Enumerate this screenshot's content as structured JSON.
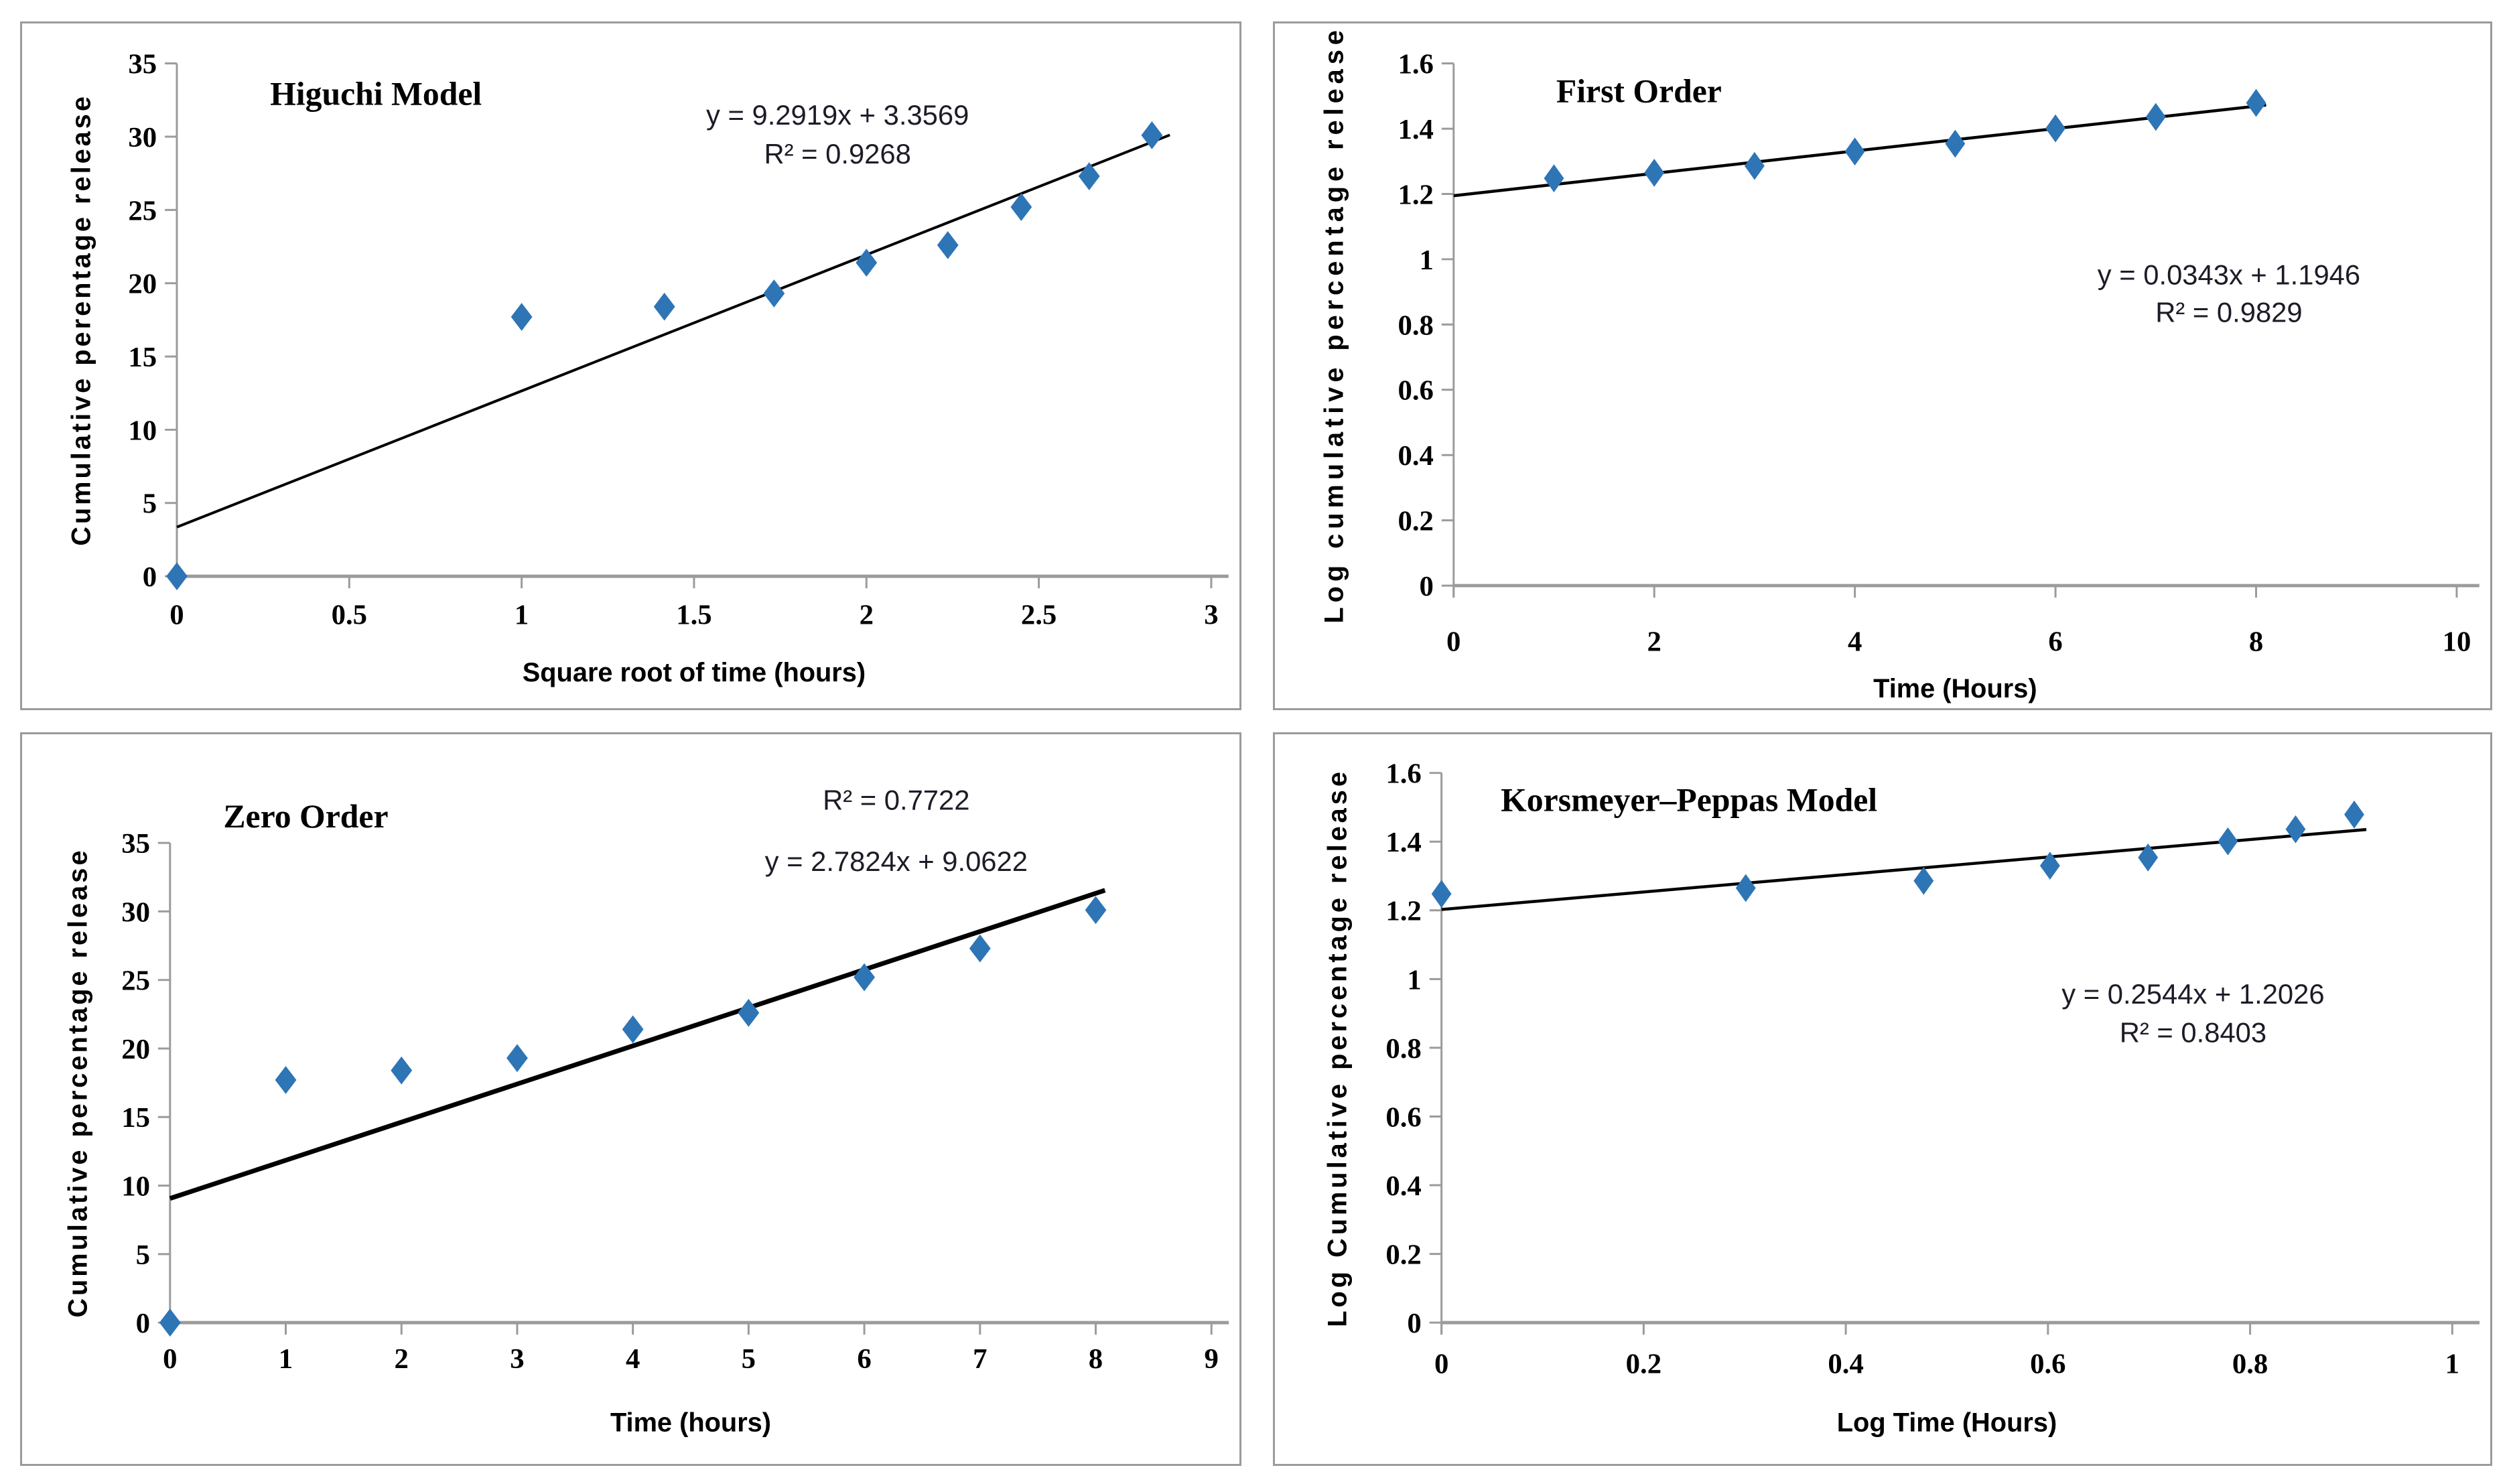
{
  "colors": {
    "marker": "#2E75B6",
    "trendline": "#000000",
    "axis": "#9B9B9B",
    "panel_border": "#9B9B9B",
    "text": "#000000",
    "equation_text": "#1c1c28",
    "background": "#ffffff"
  },
  "chart_data": [
    {
      "type": "scatter",
      "title": "Higuchi Model",
      "xlabel": "Square root of time (hours)",
      "ylabel": "Cumulative perentage release",
      "xlim": [
        0,
        3
      ],
      "ylim": [
        0,
        35
      ],
      "x_tick_values": [
        0,
        0.5,
        1,
        1.5,
        2,
        2.5,
        3
      ],
      "x_ticks": [
        "0",
        "0.5",
        "1",
        "1.5",
        "2",
        "2.5",
        "3"
      ],
      "y_tick_values": [
        0,
        5,
        10,
        15,
        20,
        25,
        30,
        35
      ],
      "y_ticks": [
        "0",
        "5",
        "10",
        "15",
        "20",
        "25",
        "30",
        "35"
      ],
      "points": [
        [
          0,
          0
        ],
        [
          1,
          17.7
        ],
        [
          1.414,
          18.4
        ],
        [
          1.732,
          19.3
        ],
        [
          2,
          21.4
        ],
        [
          2.236,
          22.6
        ],
        [
          2.449,
          25.2
        ],
        [
          2.646,
          27.3
        ],
        [
          2.828,
          30.1
        ]
      ],
      "trendline": {
        "label": "y = 9.2919x + 3.3569",
        "r2_label": "R² = 0.9268",
        "slope": 9.2919,
        "intercept": 3.3569,
        "x_start": 0,
        "x_end": 2.88,
        "annotation_order": [
          "eq",
          "r2"
        ]
      },
      "legend": "none",
      "grid": "off"
    },
    {
      "type": "scatter",
      "title": "First Order",
      "xlabel": "Time (Hours)",
      "ylabel": "Log cumulative percentage release",
      "xlim": [
        0,
        10
      ],
      "ylim": [
        0,
        1.6
      ],
      "x_tick_values": [
        0,
        2,
        4,
        6,
        8,
        10
      ],
      "x_ticks": [
        "0",
        "2",
        "4",
        "6",
        "8",
        "10"
      ],
      "y_tick_values": [
        0,
        0.2,
        0.4,
        0.6,
        0.8,
        1,
        1.2,
        1.4,
        1.6
      ],
      "y_ticks": [
        "0",
        "0.2",
        "0.4",
        "0.6",
        "0.8",
        "1",
        "1.2",
        "1.4",
        "1.6"
      ],
      "points": [
        [
          1,
          1.248
        ],
        [
          2,
          1.265
        ],
        [
          3,
          1.286
        ],
        [
          4,
          1.33
        ],
        [
          5,
          1.354
        ],
        [
          6,
          1.401
        ],
        [
          7,
          1.436
        ],
        [
          8,
          1.479
        ]
      ],
      "trendline": {
        "label": "y = 0.0343x + 1.1946",
        "r2_label": "R² = 0.9829",
        "slope": 0.0343,
        "intercept": 1.1946,
        "x_start": 0,
        "x_end": 8.1,
        "annotation_order": [
          "eq",
          "r2"
        ]
      },
      "legend": "none",
      "grid": "off"
    },
    {
      "type": "scatter",
      "title": "Zero Order",
      "xlabel": "Time (hours)",
      "ylabel": "Cumulative percentage release",
      "xlim": [
        0,
        9
      ],
      "ylim": [
        0,
        35
      ],
      "x_tick_values": [
        0,
        1,
        2,
        3,
        4,
        5,
        6,
        7,
        8,
        9
      ],
      "x_ticks": [
        "0",
        "1",
        "2",
        "3",
        "4",
        "5",
        "6",
        "7",
        "8",
        "9"
      ],
      "y_tick_values": [
        0,
        5,
        10,
        15,
        20,
        25,
        30,
        35
      ],
      "y_ticks": [
        "0",
        "5",
        "10",
        "15",
        "20",
        "25",
        "30",
        "35"
      ],
      "points": [
        [
          0,
          0
        ],
        [
          1,
          17.7
        ],
        [
          2,
          18.4
        ],
        [
          3,
          19.3
        ],
        [
          4,
          21.4
        ],
        [
          5,
          22.6
        ],
        [
          6,
          25.2
        ],
        [
          7,
          27.3
        ],
        [
          8,
          30.1
        ]
      ],
      "trendline": {
        "label": "y = 2.7824x + 9.0622",
        "r2_label": "R² = 0.7722",
        "slope": 2.7824,
        "intercept": 9.0622,
        "x_start": 0,
        "x_end": 8.08,
        "annotation_order": [
          "r2",
          "eq"
        ]
      },
      "legend": "none",
      "grid": "off"
    },
    {
      "type": "scatter",
      "title": "Korsmeyer–Peppas Model",
      "xlabel": "Log Time (Hours)",
      "ylabel": "Log Cumulative percentage release",
      "xlim": [
        0,
        1
      ],
      "ylim": [
        0,
        1.6
      ],
      "x_tick_values": [
        0,
        0.2,
        0.4,
        0.6,
        0.8,
        1
      ],
      "x_ticks": [
        "0",
        "0.2",
        "0.4",
        "0.6",
        "0.8",
        "1"
      ],
      "y_tick_values": [
        0,
        0.2,
        0.4,
        0.6,
        0.8,
        1,
        1.2,
        1.4,
        1.6
      ],
      "y_ticks": [
        "0",
        "0.2",
        "0.4",
        "0.6",
        "0.8",
        "1",
        "1.2",
        "1.4",
        "1.6"
      ],
      "points": [
        [
          0,
          1.248
        ],
        [
          0.301,
          1.265
        ],
        [
          0.477,
          1.286
        ],
        [
          0.602,
          1.33
        ],
        [
          0.699,
          1.354
        ],
        [
          0.778,
          1.401
        ],
        [
          0.845,
          1.436
        ],
        [
          0.903,
          1.479
        ]
      ],
      "trendline": {
        "label": "y = 0.2544x + 1.2026",
        "r2_label": "R² = 0.8403",
        "slope": 0.2544,
        "intercept": 1.2026,
        "x_start": 0,
        "x_end": 0.915,
        "annotation_order": [
          "eq",
          "r2"
        ]
      },
      "legend": "none",
      "grid": "off"
    }
  ]
}
